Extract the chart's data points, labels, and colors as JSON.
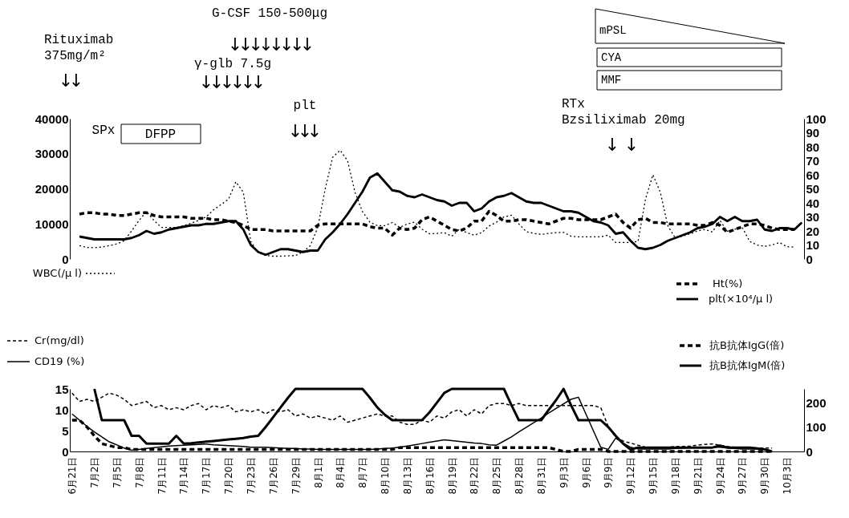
{
  "chart_data": [
    {
      "type": "line",
      "categories": [
        null,
        null,
        null,
        null,
        null,
        null,
        null,
        null,
        null,
        null,
        null,
        null,
        null,
        null,
        null,
        null,
        null,
        null,
        null,
        null,
        null,
        null,
        null,
        null,
        null,
        null,
        null,
        null,
        null,
        null,
        null,
        null,
        null,
        null,
        null,
        null,
        null,
        null,
        null,
        null,
        null,
        null,
        null,
        null,
        null,
        null,
        null,
        null,
        null,
        null,
        null,
        null,
        null,
        null,
        null,
        null,
        null,
        null,
        null,
        null,
        null,
        null,
        null,
        null,
        null,
        null,
        null,
        null,
        null,
        null,
        null,
        null,
        null,
        null,
        null,
        null,
        null,
        null,
        null,
        null,
        null,
        null,
        null,
        null,
        null,
        null,
        null,
        null,
        null,
        null,
        null,
        null,
        null,
        null,
        null,
        null,
        null,
        null,
        null
      ],
      "series": [
        {
          "name": "WBC(/μ l)",
          "color": "#000000",
          "line_style": "dotted",
          "values": [
            null,
            3800,
            3300,
            3200,
            3400,
            3800,
            4300,
            5200,
            8000,
            11000,
            13500,
            11000,
            9000,
            9000,
            9000,
            9500,
            10200,
            11000,
            12000,
            14000,
            15500,
            17000,
            22000,
            19000,
            5000,
            1800,
            1000,
            800,
            800,
            900,
            1000,
            2000,
            3800,
            9000,
            20000,
            29000,
            31000,
            28000,
            19000,
            13500,
            10500,
            9500,
            9500,
            10400,
            9000,
            10000,
            10500,
            8500,
            7200,
            7300,
            7500,
            6500,
            8500,
            7500,
            6800,
            7500,
            9400,
            10500,
            12000,
            12500,
            10000,
            7800,
            7300,
            7000,
            7300,
            7500,
            7600,
            6500,
            6300,
            6300,
            6300,
            6300,
            6800,
            4700,
            4700,
            4700,
            5000,
            17000,
            24000,
            19000,
            9500,
            6000,
            6500,
            7200,
            8000,
            8400,
            7700,
            11000,
            7900,
            8500,
            9000,
            5000,
            4000,
            3600,
            4000,
            4700,
            3500,
            3400,
            null
          ]
        },
        {
          "name": "Ht(%)",
          "color": "#000000",
          "line_style": "dashed",
          "axis": "y2",
          "values": [
            null,
            32,
            33,
            33,
            32,
            32,
            31,
            31,
            32,
            33,
            33,
            31,
            30,
            30,
            30,
            30,
            29,
            29,
            29,
            28,
            28,
            27,
            26,
            24,
            21,
            21,
            21,
            20,
            20,
            20,
            20,
            20,
            20,
            24,
            25,
            25,
            25,
            25,
            25,
            25,
            23,
            22,
            22,
            17,
            22,
            21,
            22,
            28,
            30,
            27,
            24,
            21,
            20,
            22,
            27,
            27,
            34,
            31,
            27,
            27,
            28,
            28,
            27,
            26,
            25,
            27,
            29,
            29,
            28,
            28,
            28,
            28,
            30,
            32,
            26,
            22,
            28,
            29,
            26,
            26,
            25,
            25,
            25,
            25,
            24,
            24,
            26,
            24,
            19,
            21,
            23,
            25,
            25,
            24,
            22,
            21,
            21,
            21,
            null
          ]
        },
        {
          "name": "plt(×10⁴/μ l)",
          "color": "#000000",
          "line_style": "solid",
          "axis": "y2",
          "values": [
            null,
            16,
            15,
            14,
            14,
            14,
            14,
            14,
            15,
            17,
            20,
            18,
            19,
            21,
            22,
            23,
            24,
            24,
            25,
            25,
            26,
            27,
            27,
            21,
            10,
            5,
            3,
            5,
            7,
            7,
            6,
            5,
            6,
            6,
            14,
            19,
            25,
            32,
            40,
            48,
            58,
            61,
            55,
            49,
            48,
            45,
            44,
            46,
            44,
            42,
            41,
            38,
            40,
            40,
            34,
            36,
            41,
            44,
            45,
            47,
            44,
            41,
            40,
            40,
            38,
            36,
            34,
            34,
            33,
            30,
            27,
            26,
            24,
            18,
            19,
            13,
            8,
            7,
            8,
            10,
            13,
            15,
            17,
            19,
            22,
            23,
            25,
            30,
            27,
            30,
            27,
            27,
            28,
            21,
            20,
            22,
            22,
            21,
            26
          ]
        }
      ],
      "ylim": [
        0,
        40000
      ],
      "yticks": [
        0,
        10000,
        20000,
        30000,
        40000
      ],
      "y2lim": [
        0,
        100
      ],
      "y2ticks": [
        0,
        10,
        20,
        30,
        40,
        50,
        60,
        70,
        80,
        90,
        100
      ],
      "tick_labels": "y",
      "legend": "bottom",
      "grid": false,
      "annotations": [
        "Rituximab\n375mg/m²",
        "↓↓",
        "G-CSF 150-500μg",
        "↓↓↓↓↓↓↓↓",
        "γ-glb 7.5g",
        "↓↓↓↓↓↓",
        "plt",
        "↓↓↓",
        "RTx\nBzsiliximab 20mg",
        "↓",
        "↓",
        "mPSL",
        "CYA",
        "MMF",
        "SPx",
        "DFPP"
      ]
    },
    {
      "type": "line",
      "categories": [
        "6月21日",
        null,
        null,
        "7月2日",
        null,
        null,
        "7月5日",
        null,
        null,
        "7月8日",
        null,
        null,
        "7月11日",
        null,
        null,
        "7月14日",
        null,
        null,
        "7月17日",
        null,
        null,
        "7月20日",
        null,
        null,
        "7月23日",
        null,
        null,
        "7月26日",
        null,
        null,
        "7月29日",
        null,
        null,
        "8月1日",
        null,
        null,
        "8月4日",
        null,
        null,
        "8月7日",
        null,
        null,
        "8月10日",
        null,
        null,
        "8月13日",
        null,
        null,
        "8月16日",
        null,
        null,
        "8月19日",
        null,
        null,
        "8月22日",
        null,
        null,
        "8月25日",
        null,
        null,
        "8月28日",
        null,
        null,
        "8月31日",
        null,
        null,
        "9月3日",
        null,
        null,
        "9月6日",
        null,
        null,
        "9月9日",
        null,
        null,
        "9月12日",
        null,
        null,
        "9月15日",
        null,
        null,
        "9月18日",
        null,
        null,
        "9月21日",
        null,
        null,
        "9月24日",
        null,
        null,
        "9月27日",
        null,
        null,
        "9月30日",
        null,
        null,
        "10月3日",
        null,
        null
      ],
      "series": [
        {
          "name": "Cr(mg/dl)",
          "color": "#000000",
          "line_style": "dashed",
          "values": [
            14,
            12,
            12.5,
            12,
            13,
            14,
            13.5,
            12.5,
            11,
            11.5,
            12,
            10.5,
            11,
            10,
            10.5,
            10,
            11,
            11.5,
            10,
            11,
            10.5,
            11,
            9.5,
            10,
            9.5,
            10,
            9,
            10,
            9.5,
            10,
            8.5,
            9,
            8,
            8.5,
            8,
            7.5,
            8.5,
            7,
            7.5,
            8,
            8.5,
            9,
            8.5,
            8.5,
            7,
            6.5,
            6.5,
            7.5,
            7,
            8.5,
            8,
            9.5,
            10,
            8.5,
            10,
            9,
            11,
            11.5,
            11.5,
            11,
            11.5,
            11,
            11,
            11,
            11,
            11,
            11,
            11,
            11,
            11,
            11,
            10.5,
            6,
            3.5,
            2.5,
            2,
            1.5,
            1,
            1,
            1,
            1,
            1.2,
            1.2,
            1.3,
            1.5,
            1.7,
            1.8,
            1.5,
            1.2,
            1,
            1,
            1,
            0.8,
            0.8,
            0.8,
            null,
            null,
            null,
            null
          ]
        },
        {
          "name": "CD19 (%)",
          "color": "#000000",
          "line_style": "solid",
          "values": [
            9,
            7.5,
            6,
            4.7,
            3.5,
            2.3,
            1.6,
            0.8,
            0.3,
            0.5,
            0.7,
            0.9,
            1.1,
            1.3,
            1.4,
            1.5,
            1.6,
            1.7,
            1.8,
            1.6,
            1.5,
            1.4,
            1.3,
            1.2,
            1,
            1,
            1,
            0.9,
            0.8,
            0.7,
            0.7,
            0.6,
            0.6,
            0.5,
            0.5,
            0.5,
            0.5,
            0.5,
            0.5,
            0.5,
            0.5,
            0.6,
            0.7,
            0.8,
            1,
            1.3,
            1.6,
            1.9,
            2.2,
            2.5,
            2.8,
            2.6,
            2.4,
            2.2,
            2,
            1.9,
            1.6,
            1.5,
            2.5,
            3.5,
            4.7,
            5.8,
            6.9,
            8,
            9.2,
            10.3,
            11.4,
            12.5,
            13,
            9,
            5,
            1,
            0.5,
            3.2,
            2,
            1,
            0.6,
            0.6,
            0.6,
            0.6,
            0.6,
            0.7,
            0.8,
            0.9,
            1,
            1,
            1,
            1,
            0.8,
            0.7,
            0.6,
            0.6,
            0.6,
            0.5,
            null,
            null,
            null,
            null,
            null
          ]
        },
        {
          "name": "抗B抗体IgG(倍)",
          "color": "#000000",
          "line_style": "dashed",
          "axis": "y2",
          "values": [
            128,
            128,
            100,
            64,
            32,
            24,
            16,
            16,
            8,
            8,
            8,
            8,
            8,
            8,
            8,
            8,
            8,
            8,
            8,
            8,
            8,
            8,
            8,
            8,
            8,
            8,
            8,
            8,
            8,
            8,
            8,
            8,
            8,
            8,
            8,
            8,
            8,
            8,
            8,
            8,
            8,
            8,
            8,
            8,
            16,
            16,
            16,
            16,
            16,
            16,
            16,
            16,
            16,
            16,
            16,
            16,
            16,
            16,
            16,
            16,
            16,
            16,
            16,
            16,
            16,
            8,
            0,
            0,
            8,
            8,
            8,
            8,
            0,
            0,
            0,
            0,
            0,
            0,
            0,
            0,
            0,
            0,
            0,
            0,
            0,
            0,
            0,
            0,
            0,
            0,
            0,
            0,
            0,
            0,
            0,
            null,
            null,
            null,
            null
          ]
        },
        {
          "name": "抗B抗体IgM(倍)",
          "color": "#000000",
          "line_style": "solid",
          "axis": "y2",
          "values": [
            null,
            null,
            null,
            256,
            128,
            128,
            128,
            128,
            64,
            64,
            32,
            32,
            32,
            32,
            64,
            32,
            34,
            37,
            40,
            43,
            46,
            49,
            52,
            55,
            61,
            64,
            100,
            140,
            180,
            220,
            256,
            256,
            256,
            256,
            256,
            256,
            256,
            256,
            256,
            256,
            220,
            180,
            150,
            128,
            128,
            128,
            128,
            128,
            160,
            200,
            240,
            256,
            256,
            256,
            256,
            256,
            256,
            256,
            256,
            190,
            128,
            128,
            128,
            128,
            170,
            210,
            256,
            190,
            128,
            128,
            128,
            128,
            100,
            64,
            32,
            8,
            16,
            16,
            16,
            16,
            16,
            16,
            16,
            16,
            16,
            16,
            16,
            24,
            16,
            16,
            16,
            16,
            12,
            8,
            0,
            null,
            null,
            null,
            null
          ]
        }
      ],
      "ylim": [
        0,
        15
      ],
      "yticks": [
        0,
        5,
        10,
        15
      ],
      "y2lim": [
        0,
        256
      ],
      "y2ticks": [
        0,
        100,
        200
      ],
      "legend": "top",
      "grid": false
    }
  ]
}
